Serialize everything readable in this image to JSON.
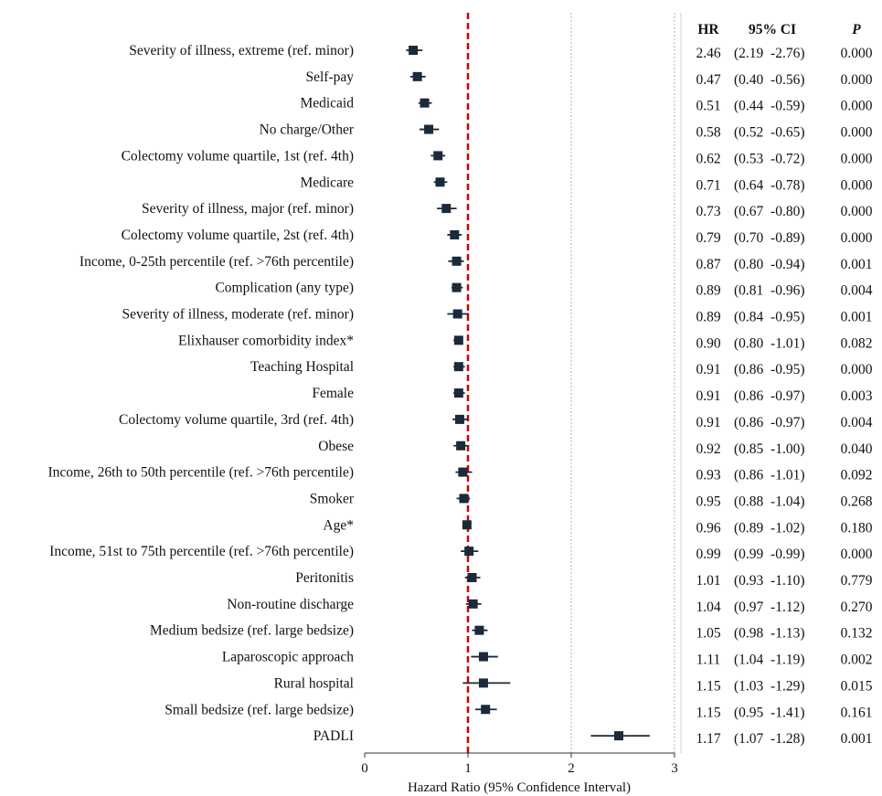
{
  "chart_data": {
    "type": "forest",
    "xlabel": "Hazard Ratio (95% Confidence Interval)",
    "xlim": [
      0,
      3
    ],
    "x_ticks": [
      "0",
      "1",
      "2",
      "3"
    ],
    "reference_line": 1,
    "table_headers": {
      "hr": "HR",
      "ci": "95% CI",
      "p": "P"
    },
    "rows": [
      {
        "label": "Severity of illness, extreme (ref. minor)",
        "hr": 0.47,
        "lo": 0.4,
        "hi": 0.56
      },
      {
        "label": "Self-pay",
        "hr": 0.51,
        "lo": 0.44,
        "hi": 0.59
      },
      {
        "label": "Medicaid",
        "hr": 0.58,
        "lo": 0.52,
        "hi": 0.65
      },
      {
        "label": "No charge/Other",
        "hr": 0.62,
        "lo": 0.53,
        "hi": 0.72
      },
      {
        "label": "Colectomy volume quartile, 1st (ref. 4th)",
        "hr": 0.71,
        "lo": 0.64,
        "hi": 0.78
      },
      {
        "label": "Medicare",
        "hr": 0.73,
        "lo": 0.67,
        "hi": 0.8
      },
      {
        "label": "Severity of illness, major (ref. minor)",
        "hr": 0.79,
        "lo": 0.7,
        "hi": 0.89
      },
      {
        "label": "Colectomy volume quartile, 2st (ref. 4th)",
        "hr": 0.87,
        "lo": 0.8,
        "hi": 0.94
      },
      {
        "label": "Income, 0-25th percentile (ref. >76th percentile)",
        "hr": 0.89,
        "lo": 0.81,
        "hi": 0.96
      },
      {
        "label": "Complication (any type)",
        "hr": 0.89,
        "lo": 0.84,
        "hi": 0.95
      },
      {
        "label": "Severity of illness, moderate (ref. minor)",
        "hr": 0.9,
        "lo": 0.8,
        "hi": 1.01
      },
      {
        "label": "Elixhauser comorbidity index*",
        "hr": 0.91,
        "lo": 0.86,
        "hi": 0.95
      },
      {
        "label": "Teaching Hospital",
        "hr": 0.91,
        "lo": 0.86,
        "hi": 0.97
      },
      {
        "label": "Female",
        "hr": 0.91,
        "lo": 0.86,
        "hi": 0.97
      },
      {
        "label": "Colectomy volume quartile, 3rd (ref. 4th)",
        "hr": 0.92,
        "lo": 0.85,
        "hi": 1.0
      },
      {
        "label": "Obese",
        "hr": 0.93,
        "lo": 0.86,
        "hi": 1.01
      },
      {
        "label": "Income, 26th to 50th percentile (ref. >76th percentile)",
        "hr": 0.95,
        "lo": 0.88,
        "hi": 1.04
      },
      {
        "label": "Smoker",
        "hr": 0.96,
        "lo": 0.89,
        "hi": 1.02
      },
      {
        "label": "Age*",
        "hr": 0.99,
        "lo": 0.99,
        "hi": 0.99
      },
      {
        "label": "Income, 51st to 75th percentile (ref. >76th percentile)",
        "hr": 1.01,
        "lo": 0.93,
        "hi": 1.1
      },
      {
        "label": "Peritonitis",
        "hr": 1.04,
        "lo": 0.97,
        "hi": 1.12
      },
      {
        "label": "Non-routine discharge",
        "hr": 1.05,
        "lo": 0.98,
        "hi": 1.13
      },
      {
        "label": "Medium bedsize (ref. large bedsize)",
        "hr": 1.11,
        "lo": 1.04,
        "hi": 1.19
      },
      {
        "label": "Laparoscopic approach",
        "hr": 1.15,
        "lo": 1.03,
        "hi": 1.29
      },
      {
        "label": "Rural hospital",
        "hr": 1.15,
        "lo": 0.95,
        "hi": 1.41
      },
      {
        "label": "Small bedsize (ref. large bedsize)",
        "hr": 1.17,
        "lo": 1.07,
        "hi": 1.28
      },
      {
        "label": "PADLI",
        "hr": 2.46,
        "lo": 2.19,
        "hi": 2.76
      }
    ],
    "table_rows": [
      {
        "hr": "2.46",
        "ci": "(2.19  -2.76)",
        "p": "0.000"
      },
      {
        "hr": "0.47",
        "ci": "(0.40  -0.56)",
        "p": "0.000"
      },
      {
        "hr": "0.51",
        "ci": "(0.44  -0.59)",
        "p": "0.000"
      },
      {
        "hr": "0.58",
        "ci": "(0.52  -0.65)",
        "p": "0.000"
      },
      {
        "hr": "0.62",
        "ci": "(0.53  -0.72)",
        "p": "0.000"
      },
      {
        "hr": "0.71",
        "ci": "(0.64  -0.78)",
        "p": "0.000"
      },
      {
        "hr": "0.73",
        "ci": "(0.67  -0.80)",
        "p": "0.000"
      },
      {
        "hr": "0.79",
        "ci": "(0.70  -0.89)",
        "p": "0.000"
      },
      {
        "hr": "0.87",
        "ci": "(0.80  -0.94)",
        "p": "0.001"
      },
      {
        "hr": "0.89",
        "ci": "(0.81  -0.96)",
        "p": "0.004"
      },
      {
        "hr": "0.89",
        "ci": "(0.84  -0.95)",
        "p": "0.001"
      },
      {
        "hr": "0.90",
        "ci": "(0.80  -1.01)",
        "p": "0.082"
      },
      {
        "hr": "0.91",
        "ci": "(0.86  -0.95)",
        "p": "0.000"
      },
      {
        "hr": "0.91",
        "ci": "(0.86  -0.97)",
        "p": "0.003"
      },
      {
        "hr": "0.91",
        "ci": "(0.86  -0.97)",
        "p": "0.004"
      },
      {
        "hr": "0.92",
        "ci": "(0.85  -1.00)",
        "p": "0.040"
      },
      {
        "hr": "0.93",
        "ci": "(0.86  -1.01)",
        "p": "0.092"
      },
      {
        "hr": "0.95",
        "ci": "(0.88  -1.04)",
        "p": "0.268"
      },
      {
        "hr": "0.96",
        "ci": "(0.89  -1.02)",
        "p": "0.180"
      },
      {
        "hr": "0.99",
        "ci": "(0.99  -0.99)",
        "p": "0.000"
      },
      {
        "hr": "1.01",
        "ci": "(0.93  -1.10)",
        "p": "0.779"
      },
      {
        "hr": "1.04",
        "ci": "(0.97  -1.12)",
        "p": "0.270"
      },
      {
        "hr": "1.05",
        "ci": "(0.98  -1.13)",
        "p": "0.132"
      },
      {
        "hr": "1.11",
        "ci": "(1.04  -1.19)",
        "p": "0.002"
      },
      {
        "hr": "1.15",
        "ci": "(1.03  -1.29)",
        "p": "0.015"
      },
      {
        "hr": "1.15",
        "ci": "(0.95  -1.41)",
        "p": "0.161"
      },
      {
        "hr": "1.17",
        "ci": "(1.07  -1.28)",
        "p": "0.001"
      }
    ],
    "colors": {
      "marker": "#1b2a3a",
      "reference_line": "#cc0000",
      "gridline": "#b0b0b0",
      "axis": "#333333"
    },
    "grid": true
  }
}
